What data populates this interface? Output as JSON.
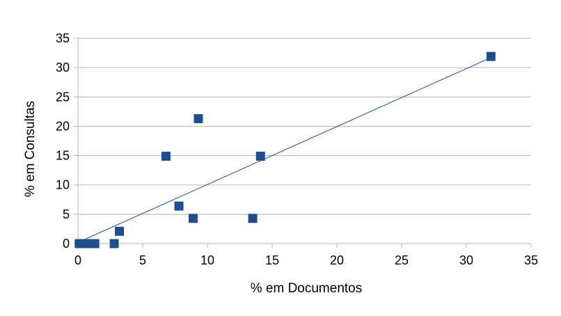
{
  "chart_data": {
    "type": "scatter",
    "xlabel": "% em Documentos",
    "ylabel": "% em Consultas",
    "xlim": [
      0,
      35
    ],
    "ylim": [
      0,
      35
    ],
    "xticks": [
      0,
      5,
      10,
      15,
      20,
      25,
      30,
      35
    ],
    "yticks": [
      0,
      5,
      10,
      15,
      20,
      25,
      30,
      35
    ],
    "grid": "horizontal",
    "legend": "none",
    "marker_color": "#1f4e8c",
    "trendline_color": "#1f4e8c",
    "points": [
      {
        "x": 0.1,
        "y": 0
      },
      {
        "x": 0.3,
        "y": 0
      },
      {
        "x": 0.5,
        "y": 0
      },
      {
        "x": 0.7,
        "y": 0
      },
      {
        "x": 0.9,
        "y": 0
      },
      {
        "x": 1.3,
        "y": 0
      },
      {
        "x": 2.8,
        "y": 0
      },
      {
        "x": 3.2,
        "y": 2.1
      },
      {
        "x": 6.8,
        "y": 14.9
      },
      {
        "x": 7.8,
        "y": 6.4
      },
      {
        "x": 8.9,
        "y": 4.3
      },
      {
        "x": 9.3,
        "y": 21.3
      },
      {
        "x": 13.5,
        "y": 4.3
      },
      {
        "x": 14.1,
        "y": 14.9
      },
      {
        "x": 31.9,
        "y": 31.9
      }
    ],
    "trendline": {
      "x": [
        0.4,
        31.9
      ],
      "y": [
        0.6,
        31.7
      ]
    }
  }
}
